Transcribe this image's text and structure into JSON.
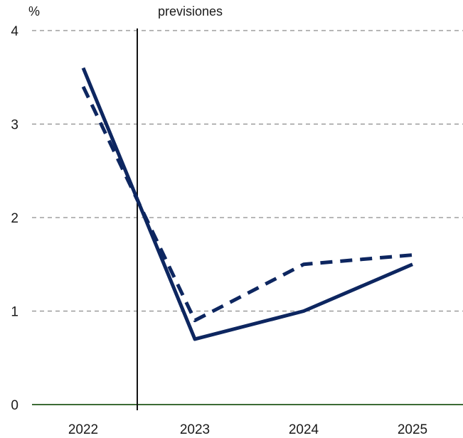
{
  "chart_data": {
    "type": "line",
    "categories": [
      "2022",
      "2023",
      "2024",
      "2025"
    ],
    "y_unit_label": "%",
    "annotation": "previsiones",
    "ylim": [
      0,
      4
    ],
    "y_ticks": [
      "0",
      "1",
      "2",
      "3",
      "4"
    ],
    "grid": "horizontal dashed",
    "legend": "none",
    "forecast_divider_between": [
      "2022",
      "2023"
    ],
    "series": [
      {
        "style": "solid",
        "color": "#0d2660",
        "values": [
          3.6,
          0.7,
          1.0,
          1.5
        ]
      },
      {
        "style": "dashed",
        "color": "#0d2660",
        "values": [
          3.4,
          0.9,
          1.5,
          1.6
        ]
      }
    ]
  }
}
